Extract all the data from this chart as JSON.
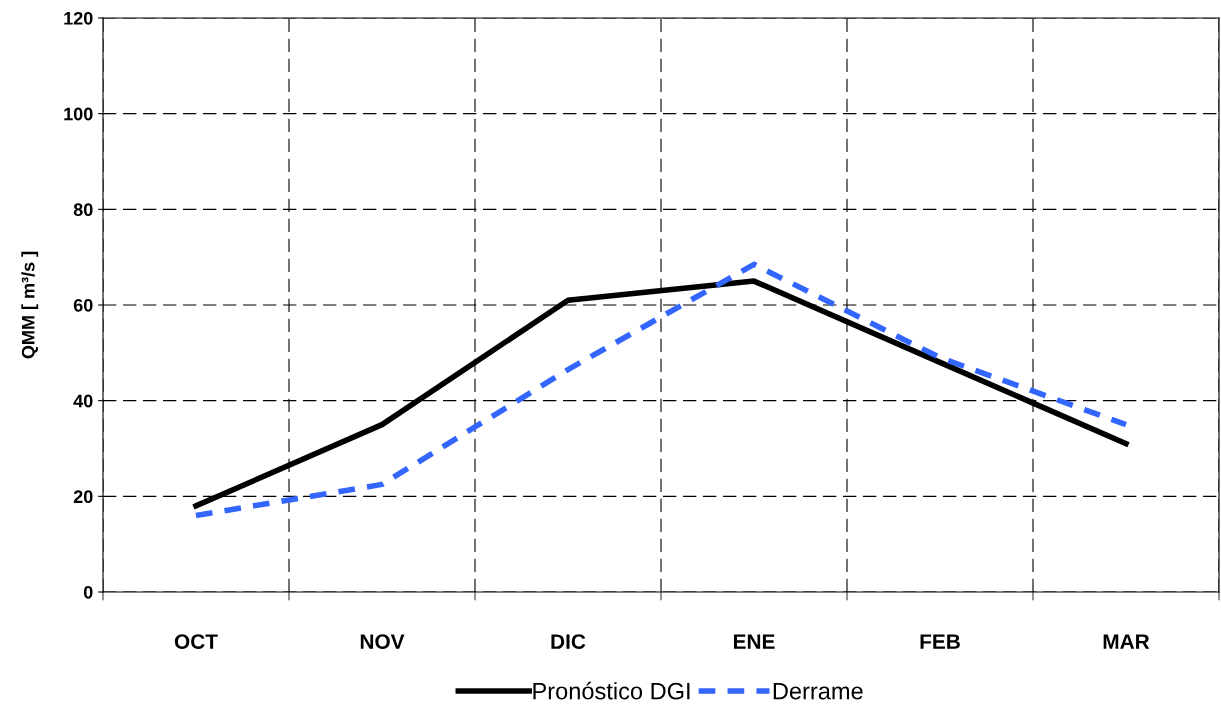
{
  "chart_data": {
    "type": "line",
    "ylabel": "QMM [ m³/s ]",
    "categories": [
      "OCT",
      "NOV",
      "DIC",
      "ENE",
      "FEB",
      "MAR"
    ],
    "series": [
      {
        "name": "Pronóstico DGI",
        "color": "#000000",
        "line_style": "solid",
        "values": [
          18,
          35,
          61,
          65,
          48,
          31
        ]
      },
      {
        "name": "Derrame",
        "color": "#3366ff",
        "line_style": "dashed",
        "values": [
          16,
          22.5,
          46.5,
          68.5,
          49,
          35
        ]
      }
    ],
    "ylim": [
      0,
      120
    ],
    "yticks": [
      0,
      20,
      40,
      60,
      80,
      100,
      120
    ],
    "grid": true,
    "legend": "bottom",
    "marker": "none"
  }
}
